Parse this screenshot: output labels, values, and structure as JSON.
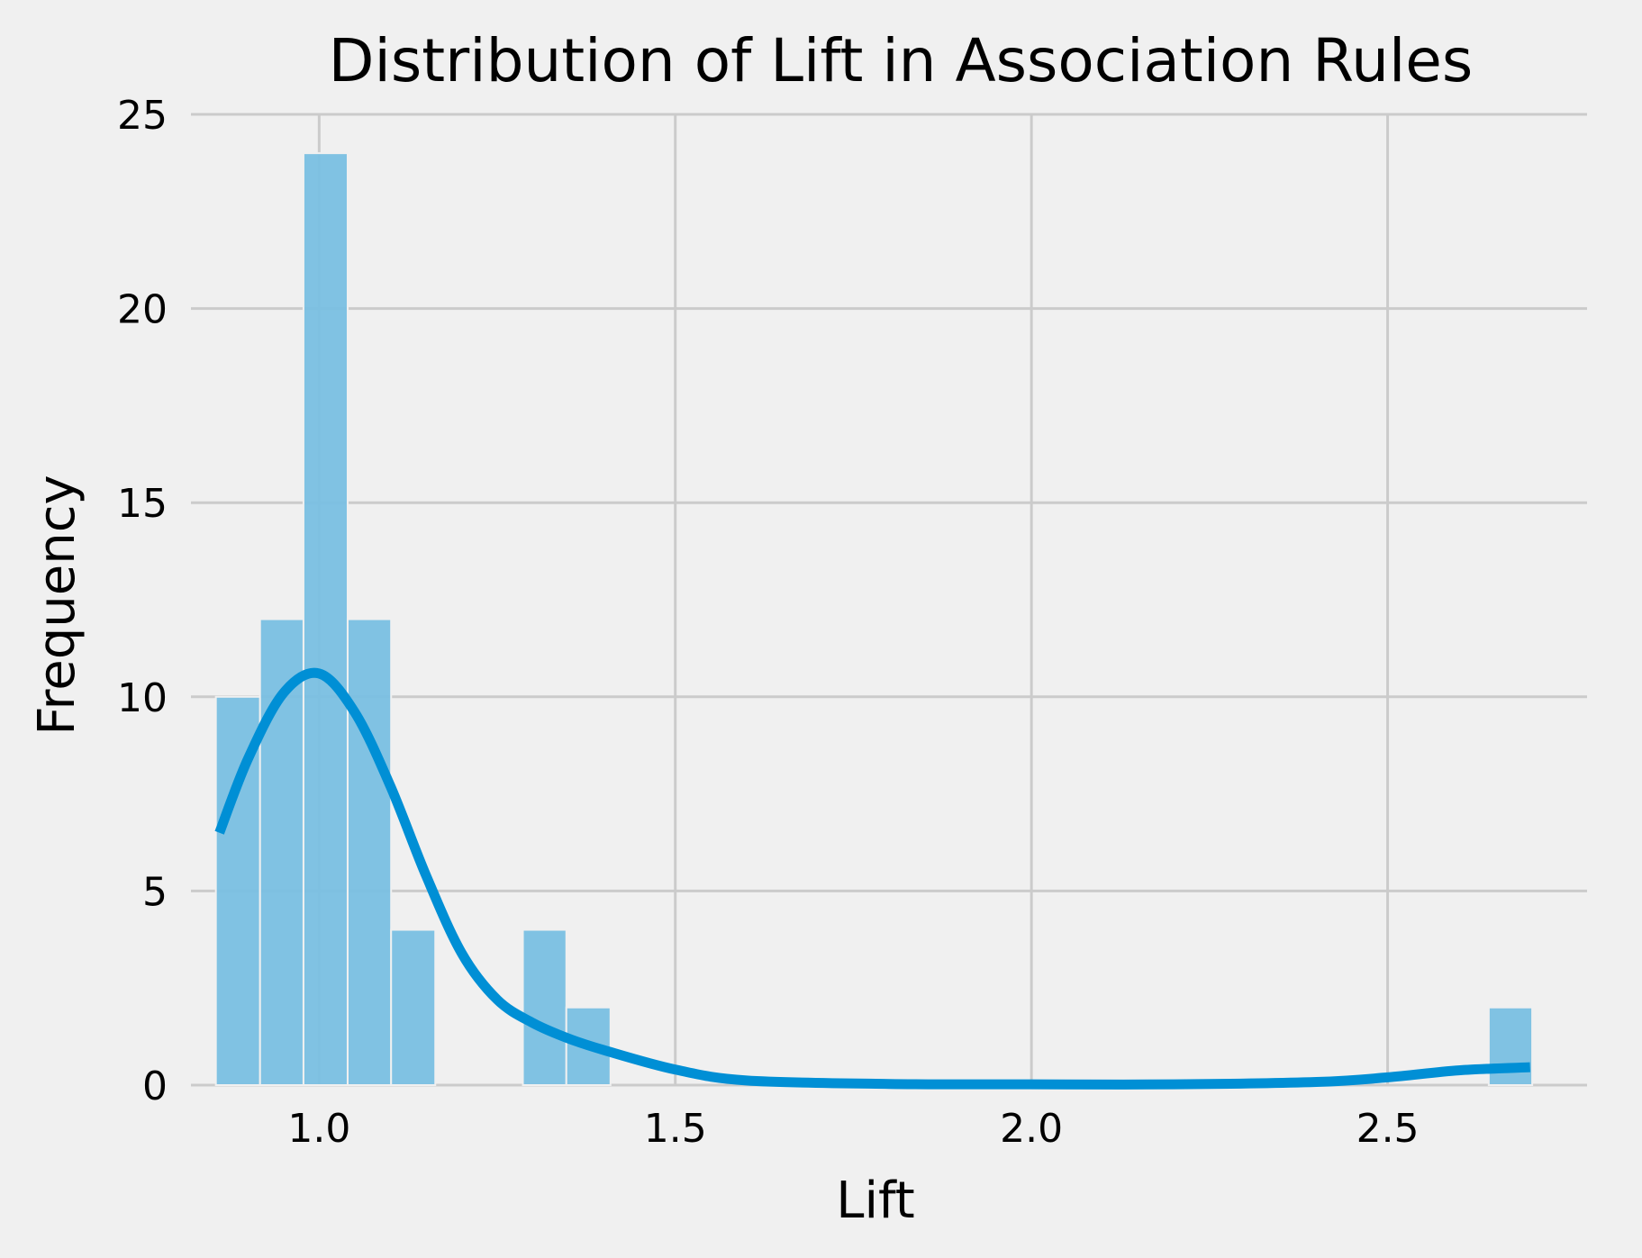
{
  "chart_data": {
    "type": "histogram",
    "title": "Distribution of Lift in Association Rules",
    "xlabel": "Lift",
    "ylabel": "Frequency",
    "xlim": [
      0.82,
      2.78
    ],
    "ylim": [
      0,
      25
    ],
    "xticks": [
      {
        "value": 1.0,
        "label": "1.0"
      },
      {
        "value": 1.5,
        "label": "1.5"
      },
      {
        "value": 2.0,
        "label": "2.0"
      },
      {
        "value": 2.5,
        "label": "2.5"
      }
    ],
    "yticks": [
      {
        "value": 0,
        "label": "0"
      },
      {
        "value": 5,
        "label": "5"
      },
      {
        "value": 10,
        "label": "10"
      },
      {
        "value": 15,
        "label": "15"
      },
      {
        "value": 20,
        "label": "20"
      },
      {
        "value": 25,
        "label": "25"
      }
    ],
    "grid": true,
    "bins": [
      {
        "x0": 0.855,
        "x1": 0.917,
        "count": 10
      },
      {
        "x0": 0.917,
        "x1": 0.978,
        "count": 12
      },
      {
        "x0": 0.978,
        "x1": 1.04,
        "count": 24
      },
      {
        "x0": 1.04,
        "x1": 1.101,
        "count": 12
      },
      {
        "x0": 1.101,
        "x1": 1.163,
        "count": 4
      },
      {
        "x0": 1.163,
        "x1": 1.224,
        "count": 0
      },
      {
        "x0": 1.224,
        "x1": 1.286,
        "count": 0
      },
      {
        "x0": 1.286,
        "x1": 1.347,
        "count": 4
      },
      {
        "x0": 1.347,
        "x1": 1.409,
        "count": 2
      },
      {
        "x0": 2.642,
        "x1": 2.703,
        "count": 2
      }
    ],
    "kde": {
      "x": [
        0.86,
        0.9,
        0.95,
        1.0,
        1.05,
        1.1,
        1.15,
        1.2,
        1.25,
        1.3,
        1.35,
        1.4,
        1.5,
        1.6,
        1.8,
        2.0,
        2.2,
        2.4,
        2.5,
        2.6,
        2.7
      ],
      "y": [
        6.5,
        8.4,
        10.1,
        10.6,
        9.6,
        7.7,
        5.4,
        3.4,
        2.2,
        1.6,
        1.2,
        0.9,
        0.4,
        0.12,
        0.03,
        0.02,
        0.02,
        0.08,
        0.2,
        0.38,
        0.46
      ]
    },
    "colors": {
      "background": "#f0f0f0",
      "bar": "#79bfe2",
      "kde": "#008fd5",
      "grid": "#cbcbcb"
    }
  }
}
